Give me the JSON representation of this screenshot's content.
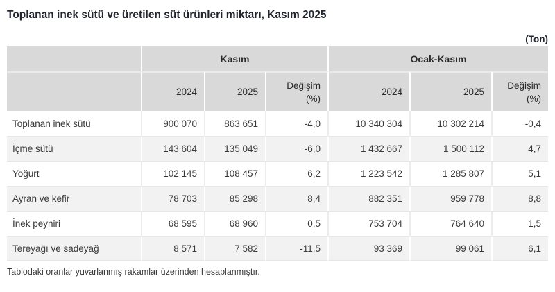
{
  "title": "Toplanan inek sütü ve üretilen süt ürünleri miktarı, Kasım 2025",
  "unit_label": "(Ton)",
  "footnote": "Tablodaki oranlar yuvarlanmış rakamlar üzerinden hesaplanmıştır.",
  "colors": {
    "header_bg": "#d9d9d9",
    "row_alt_bg": "#f2f2f2",
    "title_color": "#21252d",
    "text_color": "#3a3a3a"
  },
  "table": {
    "column_groups": [
      {
        "label": "Kasım",
        "span": 3
      },
      {
        "label": "Ocak-Kasım",
        "span": 3
      }
    ],
    "sub_headers": [
      "2024",
      "2025",
      "Değişim\n(%)",
      "2024",
      "2025",
      "Değişim\n(%)"
    ],
    "rows": [
      {
        "label": "Toplanan inek sütü",
        "values": [
          "900 070",
          "863 651",
          "-4,0",
          "10 340 304",
          "10 302 214",
          "-0,4"
        ]
      },
      {
        "label": "İçme sütü",
        "values": [
          "143 604",
          "135 049",
          "-6,0",
          "1 432 667",
          "1 500 112",
          "4,7"
        ]
      },
      {
        "label": "Yoğurt",
        "values": [
          "102 145",
          "108 457",
          "6,2",
          "1 223 542",
          "1 285 807",
          "5,1"
        ]
      },
      {
        "label": "Ayran ve kefir",
        "values": [
          "78 703",
          "85 298",
          "8,4",
          "882 351",
          "959 778",
          "8,8"
        ]
      },
      {
        "label": "İnek peyniri",
        "values": [
          "68 595",
          "68 960",
          "0,5",
          "753 704",
          "764 640",
          "1,5"
        ]
      },
      {
        "label": "Tereyağı ve sadeyağ",
        "values": [
          "8 571",
          "7 582",
          "-11,5",
          "93 369",
          "99 061",
          "6,1"
        ]
      }
    ]
  }
}
